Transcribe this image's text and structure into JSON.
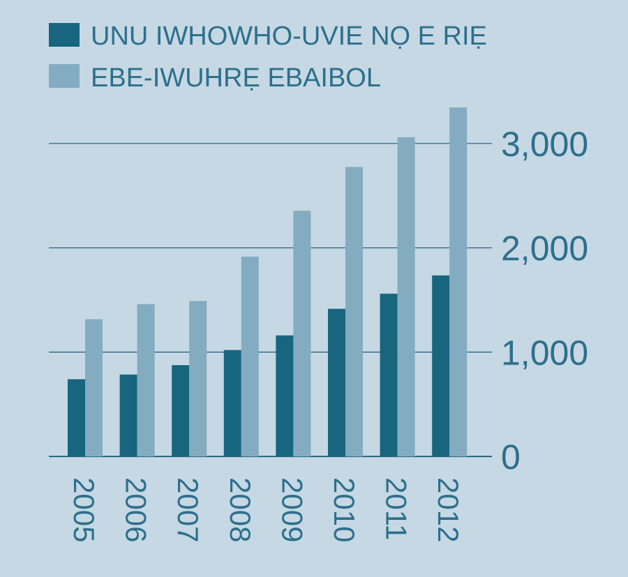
{
  "colors": {
    "background": "#c5d8e4",
    "series_dark": "#17657e",
    "series_light": "#84acc0",
    "text": "#2d6f8c",
    "grid": "#2a6782"
  },
  "chart_data": {
    "type": "bar",
    "categories": [
      "2005",
      "2006",
      "2007",
      "2008",
      "2009",
      "2010",
      "2011",
      "2012"
    ],
    "series": [
      {
        "name": "UNU IWHOWHO-UVIE NỌ E RIẸ",
        "values": [
          740,
          785,
          875,
          1020,
          1160,
          1415,
          1560,
          1735
        ]
      },
      {
        "name": "EBE-IWUHRẸ EBAIBOL",
        "values": [
          1315,
          1460,
          1490,
          1915,
          2355,
          2775,
          3060,
          3345
        ]
      }
    ],
    "yticks": [
      "0",
      "1,000",
      "2,000",
      "3,000"
    ],
    "ytick_values": [
      0,
      1000,
      2000,
      3000
    ],
    "ylim": [
      0,
      3400
    ],
    "grid": true,
    "legend_position": "top-left",
    "y_axis_position": "right",
    "x_tick_rotation": "vertical"
  }
}
